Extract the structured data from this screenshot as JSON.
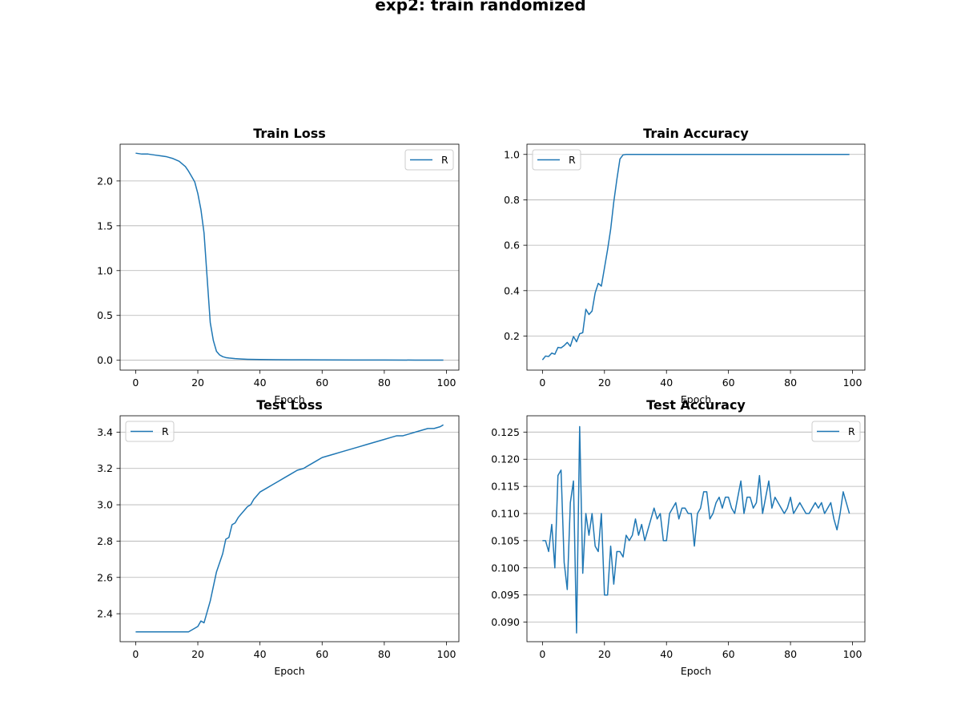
{
  "figure": {
    "suptitle": "exp2: train randomized",
    "line_color": "#1f77b4",
    "grid_color": "#b0b0b0"
  },
  "chart_data": [
    {
      "type": "line",
      "title": "Train Loss",
      "xlabel": "Epoch",
      "ylabel": "",
      "xlim": [
        -5,
        104
      ],
      "ylim": [
        -0.11,
        2.41
      ],
      "xticks": [
        0,
        20,
        40,
        60,
        80,
        100
      ],
      "yticks": [
        0.0,
        0.5,
        1.0,
        1.5,
        2.0
      ],
      "ytick_labels": [
        "0.0",
        "0.5",
        "1.0",
        "1.5",
        "2.0"
      ],
      "grid": "y",
      "legend": "upper right",
      "series": [
        {
          "name": "R",
          "x": [
            0,
            2,
            4,
            6,
            8,
            10,
            12,
            14,
            16,
            17,
            18,
            19,
            20,
            21,
            22,
            23,
            24,
            25,
            26,
            27,
            28,
            29,
            30,
            32,
            34,
            36,
            40,
            45,
            50,
            60,
            70,
            80,
            90,
            99
          ],
          "y": [
            2.31,
            2.3,
            2.3,
            2.29,
            2.28,
            2.27,
            2.25,
            2.22,
            2.16,
            2.11,
            2.05,
            1.99,
            1.86,
            1.68,
            1.42,
            0.92,
            0.42,
            0.22,
            0.1,
            0.06,
            0.04,
            0.03,
            0.025,
            0.018,
            0.014,
            0.011,
            0.008,
            0.006,
            0.005,
            0.004,
            0.003,
            0.003,
            0.002,
            0.002
          ]
        }
      ]
    },
    {
      "type": "line",
      "title": "Train Accuracy",
      "xlabel": "Epoch",
      "ylabel": "",
      "xlim": [
        -5,
        104
      ],
      "ylim": [
        0.05,
        1.045
      ],
      "xticks": [
        0,
        20,
        40,
        60,
        80,
        100
      ],
      "yticks": [
        0.2,
        0.4,
        0.6,
        0.8,
        1.0
      ],
      "ytick_labels": [
        "0.2",
        "0.4",
        "0.6",
        "0.8",
        "1.0"
      ],
      "grid": "y",
      "legend": "upper left",
      "series": [
        {
          "name": "R",
          "x": [
            0,
            1,
            2,
            3,
            4,
            5,
            6,
            7,
            8,
            9,
            10,
            11,
            12,
            13,
            14,
            15,
            16,
            17,
            18,
            19,
            20,
            21,
            22,
            23,
            24,
            25,
            26,
            27,
            28,
            30,
            40,
            50,
            60,
            70,
            80,
            90,
            99
          ],
          "y": [
            0.095,
            0.112,
            0.11,
            0.125,
            0.12,
            0.15,
            0.148,
            0.158,
            0.172,
            0.155,
            0.198,
            0.175,
            0.21,
            0.215,
            0.318,
            0.295,
            0.31,
            0.39,
            0.432,
            0.42,
            0.5,
            0.58,
            0.67,
            0.79,
            0.89,
            0.98,
            0.998,
            1.0,
            1.0,
            1.0,
            1.0,
            1.0,
            1.0,
            1.0,
            1.0,
            1.0,
            1.0
          ]
        }
      ]
    },
    {
      "type": "line",
      "title": "Test Loss",
      "xlabel": "Epoch",
      "ylabel": "",
      "xlim": [
        -5,
        104
      ],
      "ylim": [
        2.246,
        3.49
      ],
      "xticks": [
        0,
        20,
        40,
        60,
        80,
        100
      ],
      "yticks": [
        2.4,
        2.6,
        2.8,
        3.0,
        3.2,
        3.4
      ],
      "ytick_labels": [
        "2.4",
        "2.6",
        "2.8",
        "3.0",
        "3.2",
        "3.4"
      ],
      "grid": "y",
      "legend": "upper left",
      "series": [
        {
          "name": "R",
          "x": [
            0,
            2,
            4,
            6,
            8,
            10,
            12,
            14,
            16,
            17,
            18,
            19,
            20,
            21,
            22,
            23,
            24,
            25,
            26,
            27,
            28,
            29,
            30,
            31,
            32,
            33,
            34,
            35,
            36,
            37,
            38,
            39,
            40,
            42,
            44,
            46,
            48,
            50,
            52,
            54,
            56,
            58,
            60,
            62,
            64,
            66,
            68,
            70,
            72,
            74,
            76,
            78,
            80,
            82,
            84,
            86,
            88,
            90,
            92,
            94,
            96,
            98,
            99
          ],
          "y": [
            2.3,
            2.3,
            2.3,
            2.3,
            2.3,
            2.3,
            2.3,
            2.3,
            2.3,
            2.3,
            2.31,
            2.32,
            2.33,
            2.36,
            2.35,
            2.41,
            2.47,
            2.55,
            2.63,
            2.68,
            2.73,
            2.81,
            2.82,
            2.89,
            2.9,
            2.93,
            2.95,
            2.97,
            2.99,
            3.0,
            3.03,
            3.05,
            3.07,
            3.09,
            3.11,
            3.13,
            3.15,
            3.17,
            3.19,
            3.2,
            3.22,
            3.24,
            3.26,
            3.27,
            3.28,
            3.29,
            3.3,
            3.31,
            3.32,
            3.33,
            3.34,
            3.35,
            3.36,
            3.37,
            3.38,
            3.38,
            3.39,
            3.4,
            3.41,
            3.42,
            3.42,
            3.43,
            3.44
          ]
        }
      ]
    },
    {
      "type": "line",
      "title": "Test Accuracy",
      "xlabel": "Epoch",
      "ylabel": "",
      "xlim": [
        -5,
        104
      ],
      "ylim": [
        0.0864,
        0.128
      ],
      "xticks": [
        0,
        20,
        40,
        60,
        80,
        100
      ],
      "yticks": [
        0.09,
        0.095,
        0.1,
        0.105,
        0.11,
        0.115,
        0.12,
        0.125
      ],
      "ytick_labels": [
        "0.090",
        "0.095",
        "0.100",
        "0.105",
        "0.110",
        "0.115",
        "0.120",
        "0.125"
      ],
      "grid": "y",
      "legend": "upper right",
      "series": [
        {
          "name": "R",
          "x": [
            0,
            1,
            2,
            3,
            4,
            5,
            6,
            7,
            8,
            9,
            10,
            11,
            12,
            13,
            14,
            15,
            16,
            17,
            18,
            19,
            20,
            21,
            22,
            23,
            24,
            25,
            26,
            27,
            28,
            29,
            30,
            31,
            32,
            33,
            34,
            35,
            36,
            37,
            38,
            39,
            40,
            41,
            42,
            43,
            44,
            45,
            46,
            47,
            48,
            49,
            50,
            51,
            52,
            53,
            54,
            55,
            56,
            57,
            58,
            59,
            60,
            61,
            62,
            63,
            64,
            65,
            66,
            67,
            68,
            69,
            70,
            71,
            72,
            73,
            74,
            75,
            76,
            77,
            78,
            79,
            80,
            81,
            82,
            83,
            84,
            85,
            86,
            87,
            88,
            89,
            90,
            91,
            92,
            93,
            94,
            95,
            96,
            97,
            98,
            99
          ],
          "y": [
            0.105,
            0.105,
            0.103,
            0.108,
            0.1,
            0.117,
            0.118,
            0.101,
            0.096,
            0.112,
            0.116,
            0.088,
            0.126,
            0.099,
            0.11,
            0.106,
            0.11,
            0.104,
            0.103,
            0.11,
            0.095,
            0.095,
            0.104,
            0.097,
            0.103,
            0.103,
            0.102,
            0.106,
            0.105,
            0.106,
            0.109,
            0.106,
            0.108,
            0.105,
            0.107,
            0.109,
            0.111,
            0.109,
            0.11,
            0.105,
            0.105,
            0.11,
            0.111,
            0.112,
            0.109,
            0.111,
            0.111,
            0.11,
            0.11,
            0.104,
            0.11,
            0.111,
            0.114,
            0.114,
            0.109,
            0.11,
            0.112,
            0.113,
            0.111,
            0.113,
            0.113,
            0.111,
            0.11,
            0.113,
            0.116,
            0.11,
            0.113,
            0.113,
            0.111,
            0.112,
            0.117,
            0.11,
            0.113,
            0.116,
            0.111,
            0.113,
            0.112,
            0.111,
            0.11,
            0.111,
            0.113,
            0.11,
            0.111,
            0.112,
            0.111,
            0.11,
            0.11,
            0.111,
            0.112,
            0.111,
            0.112,
            0.11,
            0.111,
            0.112,
            0.109,
            0.107,
            0.11,
            0.114,
            0.112,
            0.11
          ]
        }
      ]
    }
  ]
}
